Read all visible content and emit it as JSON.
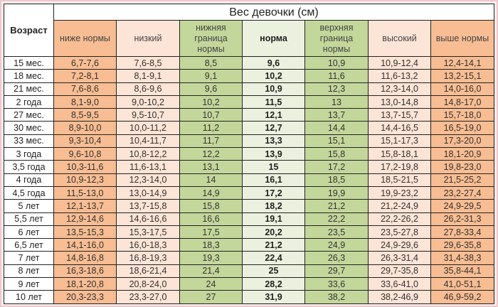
{
  "title": "Вес девочки (см)",
  "age_header": "Возраст",
  "columns": [
    "ниже нормы",
    "низкий",
    "нижняя граница нормы",
    "норма",
    "верхняя граница нормы",
    "высокий",
    "выше нормы"
  ],
  "colors": {
    "below": "#f8bd92",
    "low": "#fce4d6",
    "bound": "#c4d79b",
    "norm": "#ebf1de"
  },
  "rows": [
    [
      "15 мес.",
      "6,7-7,6",
      "7,6-8,5",
      "8,5",
      "9,6",
      "10,9",
      "10,9-12,4",
      "12,4-14,1"
    ],
    [
      "18 мес.",
      "7,2-8,1",
      "8,1-9,1",
      "9,1",
      "10,2",
      "11,6",
      "11,6-13,2",
      "13,2-15,1"
    ],
    [
      "21 мес.",
      "7,6-8,6",
      "8,6-9,6",
      "9,6",
      "10,9",
      "12,3",
      "12,3-14,0",
      "14,0-16,0"
    ],
    [
      "2 года",
      "8,1-9,0",
      "9,0-10,2",
      "10,2",
      "11,5",
      "13",
      "13,0-14,8",
      "14,8-17,0"
    ],
    [
      "27 мес.",
      "8,5-9,5",
      "9,5-10,7",
      "10,7",
      "12,1",
      "13,7",
      "13,7-15,7",
      "15,7-18,0"
    ],
    [
      "30 мес.",
      "8,9-10,0",
      "10,0-11,2",
      "11,2",
      "12,7",
      "14,4",
      "14,4-16,5",
      "16,5-19,0"
    ],
    [
      "33 мес.",
      "9,3-10,4",
      "10,4-11,7",
      "11,7",
      "13,3",
      "15,1",
      "15,1-17,3",
      "17,3-20,0"
    ],
    [
      "3 года",
      "9,6-10,8",
      "10,8-12,2",
      "12,2",
      "13,9",
      "15,8",
      "15,8-18,1",
      "18,1-20,9"
    ],
    [
      "3,5 года",
      "10,3-11,6",
      "11,6-13,1",
      "13,1",
      "15",
      "17,2",
      "17,2-19,8",
      "19,8-23,0"
    ],
    [
      "4 года",
      "10,9-12,3",
      "12,3-14,0",
      "14",
      "16,1",
      "18,5",
      "18,5-21,5",
      "21,5-25,2"
    ],
    [
      "4,5 года",
      "11,5-13,0",
      "13,0-14,9",
      "14,9",
      "17,2",
      "19,9",
      "19,9-23,2",
      "23,2-27,4"
    ],
    [
      "5 лет",
      "12,1-13,7",
      "13,7-15,8",
      "15,8",
      "18,2",
      "21,2",
      "21,2-24,9",
      "24,9-29,5"
    ],
    [
      "5,5 лет",
      "12,9-14,6",
      "14,6-16,6",
      "16,6",
      "19,1",
      "22,2",
      "22,2-26,2",
      "26,2-31,3"
    ],
    [
      "6 лет",
      "13,5-15,3",
      "15,3-17,5",
      "17,5",
      "20,2",
      "23,5",
      "23,5-27,8",
      "27,8-33,4"
    ],
    [
      "6,5 лет",
      "14,1-16,0",
      "16,0-18,3",
      "18,3",
      "21,2",
      "24,9",
      "24,9-29,6",
      "29,6-35,8"
    ],
    [
      "7 лет",
      "14,8-16,8",
      "16,8-19,3",
      "19,3",
      "22,4",
      "26,3",
      "26,3-31,4",
      "31,4-38,3"
    ],
    [
      "8 лет",
      "16,3-18,6",
      "18,6-21,4",
      "21,4",
      "25",
      "29,7",
      "29,7-35,8",
      "35,8-44,1"
    ],
    [
      "9 лет",
      "18,1-20,8",
      "20,8-24,0",
      "24",
      "28,2",
      "33,6",
      "33,6-41,0",
      "41,0-51,1"
    ],
    [
      "10 лет",
      "20,3-23,3",
      "23,3-27,0",
      "27",
      "31,9",
      "38,2",
      "38,2-46,9",
      "46,9-59,2"
    ]
  ]
}
